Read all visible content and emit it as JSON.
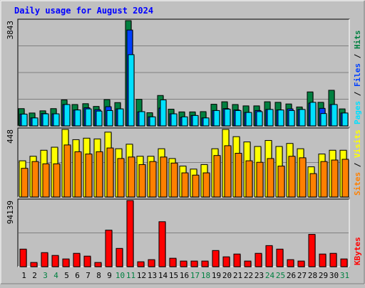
{
  "chart_data": {
    "type": "bar",
    "title": "Daily usage for August 2024",
    "categories": [
      "1",
      "2",
      "3",
      "4",
      "5",
      "6",
      "7",
      "8",
      "9",
      "10",
      "11",
      "12",
      "13",
      "14",
      "15",
      "16",
      "17",
      "18",
      "19",
      "20",
      "21",
      "22",
      "23",
      "24",
      "25",
      "26",
      "27",
      "28",
      "29",
      "30",
      "31"
    ],
    "weekend_days": [
      "3",
      "4",
      "10",
      "11",
      "17",
      "18",
      "24",
      "25",
      "31"
    ],
    "colors": {
      "hits": "#008040",
      "files": "#0040ff",
      "pages": "#00e0ff",
      "visits": "#ffff00",
      "sites": "#ff8000",
      "kbytes": "#ff0000",
      "title": "#0000ff",
      "weekday_label": "#000000",
      "weekend_label": "#008040"
    },
    "panels": [
      {
        "id": "top",
        "ymax_label": "3843",
        "ylim": [
          0,
          3843
        ],
        "legend": [
          {
            "text": "Pages",
            "color": "#00e0ff"
          },
          {
            "text": " / ",
            "color": "#000000"
          },
          {
            "text": "Files",
            "color": "#0040ff"
          },
          {
            "text": " / ",
            "color": "#000000"
          },
          {
            "text": "Hits",
            "color": "#008040"
          }
        ],
        "series": [
          {
            "name": "Hits",
            "values": [
              630,
              470,
              550,
              630,
              950,
              780,
              810,
              710,
              960,
              850,
              3843,
              970,
              480,
              1110,
              610,
              510,
              510,
              520,
              790,
              880,
              780,
              730,
              730,
              880,
              860,
              800,
              690,
              1240,
              860,
              1300,
              620
            ]
          },
          {
            "name": "Files",
            "values": [
              430,
              290,
              450,
              440,
              780,
              580,
              660,
              590,
              700,
              620,
              3500,
              510,
              330,
              650,
              440,
              310,
              380,
              290,
              560,
              630,
              580,
              490,
              560,
              600,
              580,
              620,
              600,
              830,
              640,
              780,
              470
            ]
          },
          {
            "name": "Pages",
            "values": [
              430,
              290,
              440,
              440,
              780,
              580,
              620,
              540,
              560,
              620,
              2600,
              520,
              330,
              950,
              440,
              330,
              380,
              290,
              560,
              610,
              560,
              490,
              520,
              600,
              580,
              560,
              600,
              860,
              450,
              780,
              470
            ]
          }
        ]
      },
      {
        "id": "middle",
        "ymax_label": "448",
        "ylim": [
          0,
          448
        ],
        "legend": [
          {
            "text": "Sites",
            "color": "#ff8000"
          },
          {
            "text": " / ",
            "color": "#000000"
          },
          {
            "text": "Visits",
            "color": "#ffff00"
          }
        ],
        "series": [
          {
            "name": "Visits",
            "values": [
              240,
              270,
              310,
              330,
              448,
              380,
              390,
              385,
              430,
              320,
              350,
              270,
              270,
              320,
              255,
              205,
              185,
              215,
              320,
              448,
              400,
              365,
              335,
              375,
              335,
              355,
              320,
              200,
              285,
              310,
              310
            ]
          },
          {
            "name": "Sites",
            "values": [
              190,
              235,
              220,
              220,
              345,
              300,
              285,
              300,
              325,
              255,
              265,
              215,
              235,
              265,
              225,
              160,
              145,
              160,
              275,
              340,
              290,
              240,
              230,
              255,
              205,
              270,
              260,
              155,
              235,
              245,
              250
            ]
          }
        ]
      },
      {
        "id": "bottom",
        "ymax_label": "94139",
        "ylim": [
          0,
          94139
        ],
        "legend": [
          {
            "text": "KBytes",
            "color": "#ff0000"
          }
        ],
        "series": [
          {
            "name": "KBytes",
            "values": [
              25000,
              6000,
              20000,
              16000,
              11000,
              19000,
              15000,
              6000,
              52000,
              26000,
              94139,
              7000,
              10000,
              64000,
              12000,
              8000,
              8000,
              8000,
              23000,
              14000,
              18000,
              8000,
              19000,
              30000,
              25000,
              10000,
              8000,
              46000,
              18000,
              19000,
              11000
            ]
          }
        ]
      }
    ]
  }
}
